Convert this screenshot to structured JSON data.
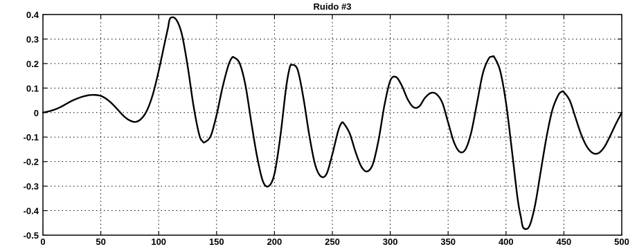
{
  "chart_data": {
    "type": "line",
    "title": "Ruido #3",
    "xlabel": "",
    "ylabel": "",
    "xlim": [
      0,
      500
    ],
    "ylim": [
      -0.5,
      0.4
    ],
    "grid": true,
    "x_ticks": [
      0,
      50,
      100,
      150,
      200,
      250,
      300,
      350,
      400,
      450,
      500
    ],
    "y_ticks": [
      0.4,
      0.3,
      0.2,
      0.1,
      0,
      -0.1,
      -0.2,
      -0.3,
      -0.4,
      -0.5
    ],
    "series": [
      {
        "x": [
          0,
          5,
          10,
          15,
          20,
          25,
          30,
          35,
          40,
          45,
          50,
          55,
          60,
          65,
          70,
          75,
          80,
          85,
          90,
          95,
          100,
          105,
          108,
          110,
          115,
          120,
          125,
          130,
          135,
          138,
          140,
          145,
          150,
          155,
          160,
          163,
          165,
          170,
          175,
          180,
          185,
          190,
          195,
          200,
          205,
          210,
          213,
          215,
          220,
          225,
          230,
          235,
          240,
          245,
          250,
          255,
          258,
          260,
          265,
          270,
          275,
          280,
          285,
          290,
          295,
          300,
          305,
          310,
          315,
          320,
          325,
          330,
          335,
          340,
          345,
          350,
          355,
          360,
          365,
          370,
          375,
          380,
          385,
          388,
          390,
          395,
          400,
          405,
          410,
          413,
          415,
          420,
          425,
          430,
          435,
          440,
          445,
          448,
          450,
          455,
          460,
          465,
          470,
          475,
          480,
          485,
          490,
          495,
          500
        ],
        "y": [
          0.0,
          0.005,
          0.012,
          0.022,
          0.035,
          0.048,
          0.058,
          0.066,
          0.071,
          0.072,
          0.068,
          0.055,
          0.035,
          0.01,
          -0.015,
          -0.032,
          -0.038,
          -0.025,
          0.01,
          0.075,
          0.17,
          0.28,
          0.345,
          0.385,
          0.38,
          0.32,
          0.19,
          0.03,
          -0.09,
          -0.118,
          -0.12,
          -0.095,
          -0.01,
          0.1,
          0.19,
          0.222,
          0.225,
          0.2,
          0.11,
          -0.04,
          -0.18,
          -0.28,
          -0.3,
          -0.25,
          -0.1,
          0.1,
          0.18,
          0.195,
          0.175,
          0.06,
          -0.09,
          -0.21,
          -0.26,
          -0.25,
          -0.17,
          -0.075,
          -0.042,
          -0.045,
          -0.085,
          -0.16,
          -0.22,
          -0.24,
          -0.21,
          -0.11,
          0.03,
          0.13,
          0.145,
          0.11,
          0.055,
          0.022,
          0.025,
          0.06,
          0.08,
          0.075,
          0.04,
          -0.04,
          -0.12,
          -0.16,
          -0.15,
          -0.08,
          0.04,
          0.16,
          0.22,
          0.228,
          0.225,
          0.17,
          0.04,
          -0.15,
          -0.35,
          -0.43,
          -0.47,
          -0.465,
          -0.38,
          -0.24,
          -0.1,
          0.01,
          0.07,
          0.085,
          0.083,
          0.05,
          -0.02,
          -0.09,
          -0.14,
          -0.165,
          -0.165,
          -0.14,
          -0.095,
          -0.045,
          0.0
        ]
      }
    ]
  }
}
